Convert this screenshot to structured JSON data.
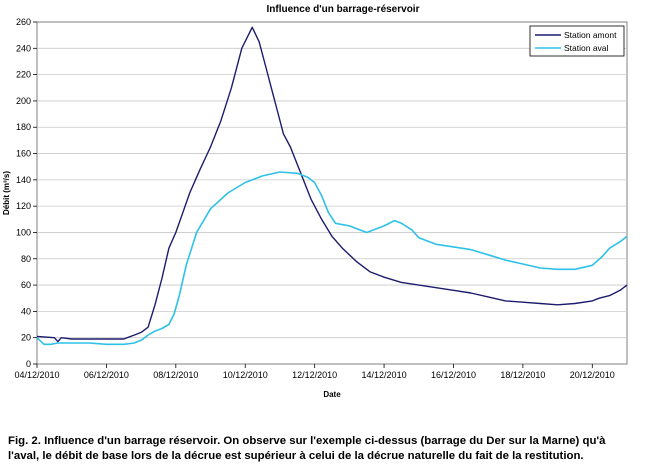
{
  "chart_data": {
    "type": "line",
    "title": "Influence d'un barrage-réservoir",
    "xlabel": "Date",
    "ylabel": "Débit (m³/s)",
    "ylim": [
      0,
      260
    ],
    "yticks": [
      0,
      20,
      40,
      60,
      80,
      100,
      120,
      140,
      160,
      180,
      200,
      220,
      240,
      260
    ],
    "xlim": [
      0,
      17
    ],
    "xtick_positions": [
      0,
      2,
      4,
      6,
      8,
      10,
      12,
      14,
      16
    ],
    "xtick_labels": [
      "04/12/2010",
      "06/12/2010",
      "08/12/2010",
      "10/12/2010",
      "12/12/2010",
      "14/12/2010",
      "16/12/2010",
      "18/12/2010",
      "20/12/2010"
    ],
    "grid": "horizontal",
    "legend_position": "top-right",
    "series": [
      {
        "name": "Station amont",
        "color": "#1c1c6e",
        "x": [
          0,
          0.5,
          0.6,
          0.7,
          1.0,
          1.5,
          2.0,
          2.5,
          2.8,
          3.0,
          3.2,
          3.4,
          3.6,
          3.8,
          4.0,
          4.2,
          4.4,
          4.7,
          5.0,
          5.3,
          5.6,
          5.9,
          6.2,
          6.4,
          6.6,
          6.75,
          6.9,
          7.1,
          7.3,
          7.6,
          7.9,
          8.2,
          8.5,
          8.8,
          9.2,
          9.6,
          10.0,
          10.5,
          11.0,
          11.5,
          12.0,
          12.5,
          13.0,
          13.5,
          14.0,
          14.5,
          15.0,
          15.5,
          16.0,
          16.2,
          16.5,
          16.8,
          17.0
        ],
        "y": [
          21,
          20,
          17,
          20,
          19,
          19,
          19,
          19,
          22,
          24,
          28,
          45,
          65,
          88,
          100,
          115,
          130,
          148,
          165,
          185,
          210,
          240,
          256,
          245,
          225,
          210,
          195,
          175,
          165,
          145,
          125,
          110,
          97,
          88,
          78,
          70,
          66,
          62,
          60,
          58,
          56,
          54,
          51,
          48,
          47,
          46,
          45,
          46,
          48,
          50,
          52,
          56,
          60
        ]
      },
      {
        "name": "Station aval",
        "color": "#2ec1e8",
        "x": [
          0,
          0.2,
          0.4,
          0.6,
          1.0,
          1.5,
          2.0,
          2.5,
          2.8,
          3.0,
          3.2,
          3.4,
          3.6,
          3.8,
          3.95,
          4.1,
          4.3,
          4.6,
          5.0,
          5.5,
          6.0,
          6.5,
          7.0,
          7.5,
          7.8,
          8.0,
          8.2,
          8.4,
          8.6,
          9.0,
          9.5,
          10.0,
          10.3,
          10.5,
          10.8,
          11.0,
          11.5,
          12.0,
          12.5,
          13.0,
          13.5,
          14.0,
          14.5,
          15.0,
          15.5,
          16.0,
          16.3,
          16.5,
          16.8,
          17.0
        ],
        "y": [
          20,
          15,
          15,
          16,
          16,
          16,
          15,
          15,
          16,
          18,
          22,
          25,
          27,
          30,
          38,
          52,
          75,
          100,
          118,
          130,
          138,
          143,
          146,
          145,
          142,
          138,
          128,
          115,
          107,
          105,
          100,
          105,
          109,
          107,
          102,
          96,
          91,
          89,
          87,
          83,
          79,
          76,
          73,
          72,
          72,
          75,
          82,
          88,
          93,
          97
        ]
      }
    ]
  },
  "caption": {
    "line1": "Fig. 2. Influence d'un barrage réservoir. On observe sur l'exemple ci-dessus (barrage du Der sur la Marne) qu'à",
    "line2": "l'aval, le débit de base lors de la décrue est supérieur à celui de la décrue naturelle du fait de la restitution."
  }
}
